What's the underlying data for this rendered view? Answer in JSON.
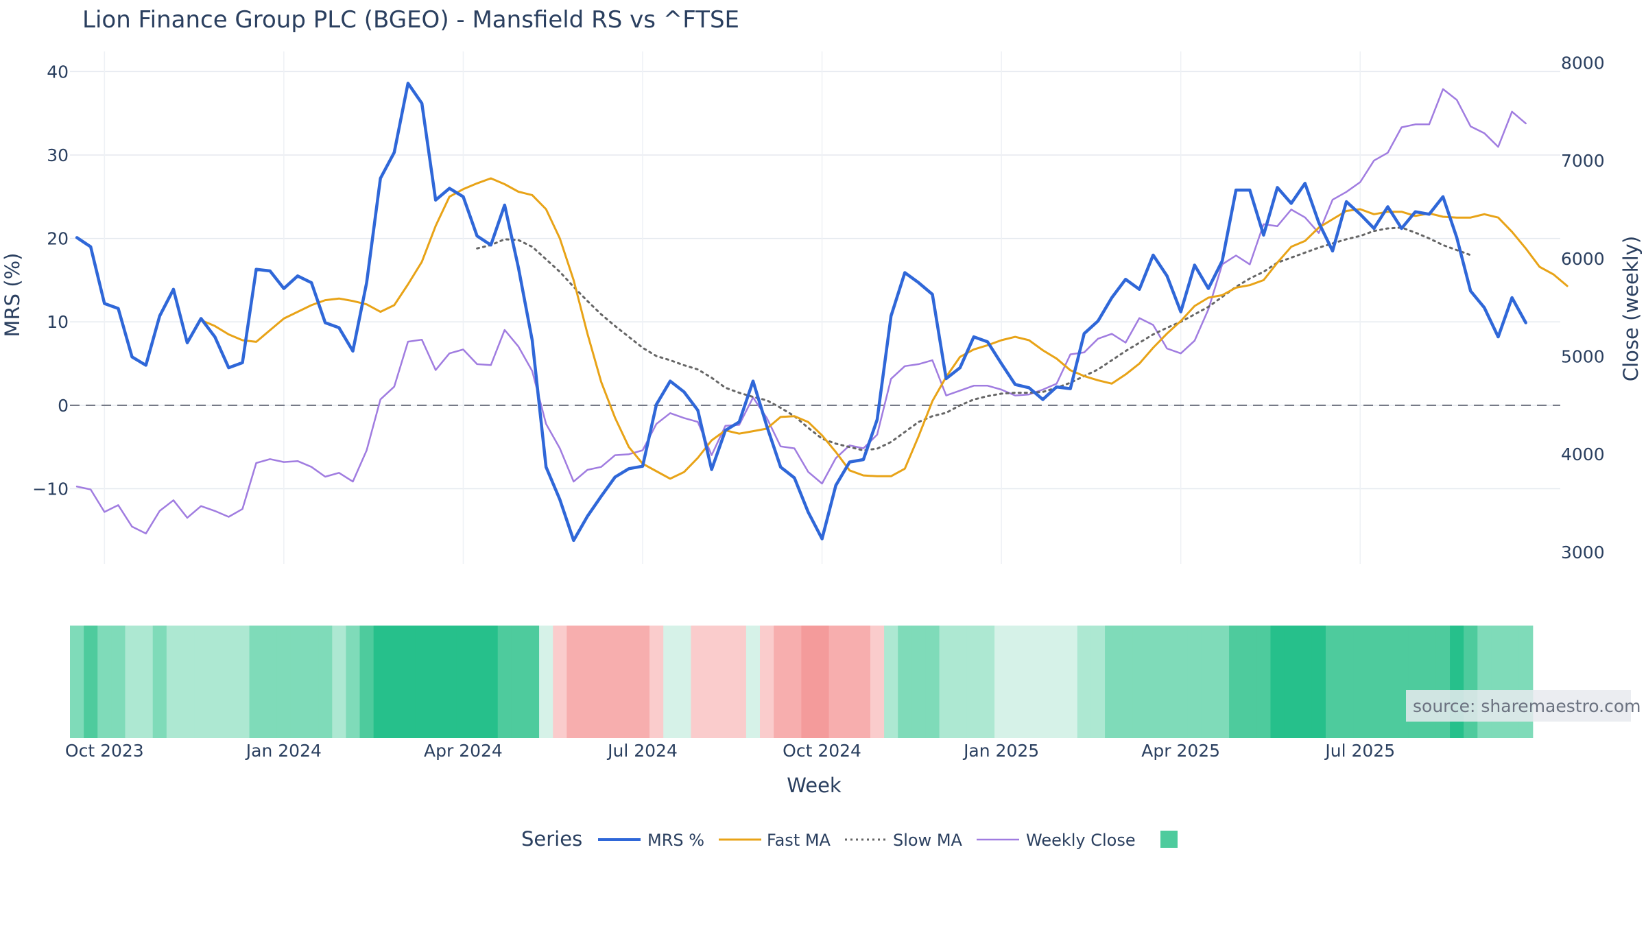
{
  "title": "Lion Finance Group PLC (BGEO) - Mansfield RS vs ^FTSE",
  "watermark": "source: sharemaestro.com",
  "legend": {
    "title": "Series",
    "mrs_label": "MRS %",
    "fast_label": "Fast MA",
    "slow_label": "Slow MA",
    "close_label": "Weekly Close"
  },
  "chart_data": {
    "type": "line",
    "title": "Lion Finance Group PLC (BGEO) - Mansfield RS vs ^FTSE",
    "xlabel": "Week",
    "ylabel": "MRS (%)",
    "y2label": "Close (weekly)",
    "ylim": [
      -19,
      42
    ],
    "y2lim": [
      2880,
      8080
    ],
    "yticks": [
      -10,
      0,
      10,
      20,
      30,
      40
    ],
    "yticklabels": [
      "−10",
      "0",
      "10",
      "20",
      "30",
      "40"
    ],
    "y2ticks": [
      3000,
      4000,
      5000,
      6000,
      7000,
      8000
    ],
    "y2ticklabels": [
      "3000",
      "4000",
      "5000",
      "6000",
      "7000",
      "8000"
    ],
    "xticks": [
      2,
      15,
      28,
      41,
      54,
      67,
      80,
      93
    ],
    "xticklabels": [
      "Oct 2023",
      "Jan 2024",
      "Apr 2024",
      "Jul 2024",
      "Oct 2024",
      "Jan 2025",
      "Apr 2025",
      "Jul 2025"
    ],
    "zero_line": true,
    "grid": true,
    "legend_position": "bottom",
    "n_weeks": 108,
    "series": [
      {
        "name": "MRS %",
        "axis": "left",
        "color": "#2f67d8",
        "style": "solid",
        "start": 0,
        "values": [
          20.1,
          19,
          12.2,
          11.6,
          5.8,
          4.8,
          10.7,
          13.9,
          7.5,
          10.4,
          8.2,
          4.5,
          5.1,
          16.3,
          16.1,
          14,
          15.5,
          14.7,
          9.9,
          9.3,
          6.5,
          14.7,
          27.2,
          30.3,
          38.6,
          36.2,
          24.6,
          26,
          25,
          20.3,
          19.2,
          24,
          16.5,
          7.8,
          -7.4,
          -11.3,
          -16.2,
          -13.3,
          -10.9,
          -8.6,
          -7.6,
          -7.3,
          0.1,
          2.9,
          1.6,
          -0.6,
          -7.7,
          -3,
          -2,
          2.9,
          -2.5,
          -7.4,
          -8.7,
          -12.8,
          -16,
          -9.6,
          -6.8,
          -6.5,
          -1.7,
          10.7,
          15.9,
          14.7,
          13.3,
          3.2,
          4.5,
          8.2,
          7.6,
          5,
          2.5,
          2.1,
          0.7,
          2.2,
          2,
          8.6,
          10.1,
          12.9,
          15.1,
          13.9,
          18,
          15.5,
          11.2,
          16.8,
          14,
          17.3,
          25.8,
          25.8,
          20.4,
          26.1,
          24.2,
          26.6,
          21.9,
          18.5,
          24.4,
          22.9,
          21.2,
          23.8,
          21.2,
          23.2,
          22.9,
          25,
          20.1,
          13.7,
          11.7,
          8.2,
          12.9,
          9.9
        ]
      },
      {
        "name": "Fast MA",
        "axis": "left",
        "color": "#e8a317",
        "style": "solid",
        "start": 9,
        "values": [
          10.2,
          9.5,
          8.5,
          7.8,
          7.6,
          9,
          10.4,
          11.2,
          12,
          12.6,
          12.8,
          12.5,
          12.1,
          11.2,
          12,
          14.5,
          17.2,
          21.5,
          25,
          25.9,
          26.6,
          27.2,
          26.5,
          25.6,
          25.2,
          23.5,
          20,
          15,
          8.6,
          2.8,
          -1.5,
          -5,
          -7,
          -7.9,
          -8.8,
          -8,
          -6.3,
          -4.2,
          -3,
          -3.4,
          -3.1,
          -2.8,
          -1.4,
          -1.3,
          -2,
          -3.6,
          -5.6,
          -7.8,
          -8.4,
          -8.5,
          -8.5,
          -7.6,
          -3.7,
          0.5,
          3.4,
          5.8,
          6.7,
          7.2,
          7.8,
          8.2,
          7.8,
          6.6,
          5.6,
          4.2,
          3.5,
          3,
          2.6,
          3.7,
          5,
          6.9,
          8.6,
          10.1,
          11.9,
          12.9,
          13.2,
          14.1,
          14.4,
          15,
          17.1,
          19,
          19.7,
          21.3,
          22.3,
          23.3,
          23.5,
          22.9,
          23.2,
          23.2,
          22.7,
          23,
          22.6,
          22.5,
          22.5,
          22.9,
          22.5,
          20.8,
          18.8,
          16.6,
          15.7,
          14.3
        ]
      },
      {
        "name": "Slow MA",
        "axis": "left",
        "color": "#666666",
        "style": "dotted",
        "start": 29,
        "values": [
          18.8,
          19.2,
          19.9,
          19.8,
          19,
          17.5,
          16,
          14.2,
          12.5,
          10.9,
          9.5,
          8.2,
          6.9,
          5.9,
          5.4,
          4.8,
          4.3,
          3.3,
          2.1,
          1.5,
          1,
          0.6,
          -0.3,
          -1.3,
          -2.7,
          -4,
          -4.6,
          -5,
          -5.4,
          -5.2,
          -4.4,
          -3.2,
          -2,
          -1.3,
          -0.9,
          0,
          0.7,
          1.1,
          1.4,
          1.5,
          1.5,
          1.6,
          2.1,
          2.7,
          3.5,
          4.3,
          5.4,
          6.5,
          7.5,
          8.5,
          9.3,
          10,
          10.9,
          11.8,
          13,
          14.2,
          15.2,
          16,
          17.1,
          17.7,
          18.3,
          18.9,
          19.4,
          19.9,
          20.3,
          20.9,
          21.2,
          21.3,
          20.7,
          20,
          19.2,
          18.6,
          18
        ]
      },
      {
        "name": "Weekly Close",
        "axis": "right",
        "color": "#a07ce0",
        "style": "solid",
        "start": 0,
        "values": [
          3670,
          3640,
          3410,
          3480,
          3260,
          3190,
          3420,
          3530,
          3350,
          3470,
          3420,
          3360,
          3440,
          3910,
          3950,
          3920,
          3930,
          3870,
          3770,
          3810,
          3720,
          4040,
          4560,
          4690,
          5150,
          5170,
          4860,
          5030,
          5070,
          4920,
          4910,
          5270,
          5100,
          4850,
          4310,
          4060,
          3720,
          3840,
          3870,
          3990,
          4000,
          4040,
          4310,
          4420,
          4370,
          4330,
          3990,
          4290,
          4300,
          4580,
          4370,
          4080,
          4060,
          3820,
          3700,
          3960,
          4090,
          4060,
          4200,
          4770,
          4900,
          4920,
          4960,
          4600,
          4650,
          4700,
          4700,
          4660,
          4600,
          4610,
          4660,
          4720,
          5020,
          5040,
          5180,
          5230,
          5140,
          5390,
          5320,
          5080,
          5030,
          5160,
          5480,
          5940,
          6030,
          5940,
          6350,
          6330,
          6500,
          6420,
          6260,
          6600,
          6680,
          6780,
          7000,
          7080,
          7340,
          7370,
          7370,
          7730,
          7620,
          7350,
          7280,
          7140,
          7500,
          7380
        ]
      }
    ],
    "heatmap": {
      "palette": [
        "#f49b9b",
        "#f7aeae",
        "#facccc",
        "#d6f2e8",
        "#ade8d2",
        "#7fdbb9",
        "#4ecb9d",
        "#26c08b"
      ],
      "levels": [
        5,
        6,
        5,
        5,
        4,
        4,
        5,
        4,
        4,
        4,
        4,
        4,
        4,
        5,
        5,
        5,
        5,
        5,
        5,
        4,
        5,
        6,
        7,
        7,
        7,
        7,
        7,
        7,
        7,
        7,
        7,
        6,
        6,
        6,
        3,
        2,
        1,
        1,
        1,
        1,
        1,
        1,
        2,
        3,
        3,
        2,
        2,
        2,
        2,
        3,
        2,
        1,
        1,
        0,
        0,
        1,
        1,
        1,
        2,
        4,
        5,
        5,
        5,
        4,
        4,
        4,
        4,
        3,
        3,
        3,
        3,
        3,
        3,
        4,
        4,
        5,
        5,
        5,
        5,
        5,
        5,
        5,
        5,
        5,
        6,
        6,
        6,
        7,
        7,
        7,
        7,
        6,
        6,
        6,
        6,
        6,
        6,
        6,
        6,
        6,
        7,
        6,
        5,
        5,
        5,
        5
      ]
    }
  }
}
